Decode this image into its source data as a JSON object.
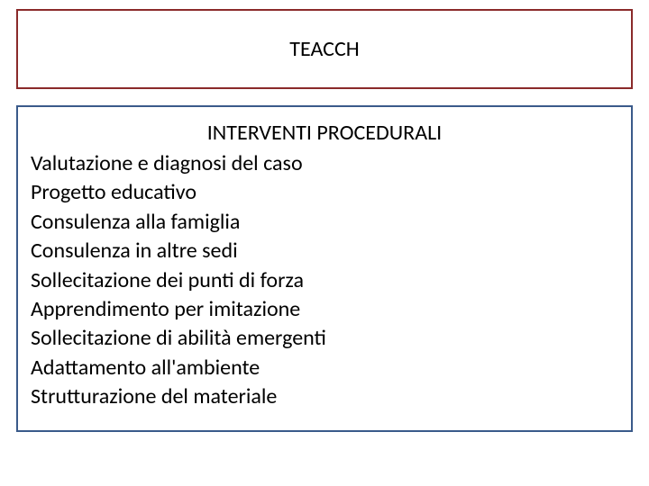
{
  "title_box": {
    "text": "TEACCH",
    "border_color": "#8a2a2a",
    "text_color": "#000000",
    "font_size_pt": 18
  },
  "content_box": {
    "subtitle": "INTERVENTI PROCEDURALI",
    "border_color": "#3a5a8a",
    "text_color": "#000000",
    "font_size_pt": 18,
    "items": [
      "Valutazione e diagnosi del caso",
      "Progetto educativo",
      "Consulenza alla famiglia",
      "Consulenza in altre sedi",
      "Sollecitazione dei punti di forza",
      "Apprendimento per imitazione",
      "Sollecitazione di abilità emergenti",
      "Adattamento all'ambiente",
      "Strutturazione del materiale"
    ]
  },
  "background_color": "#ffffff"
}
